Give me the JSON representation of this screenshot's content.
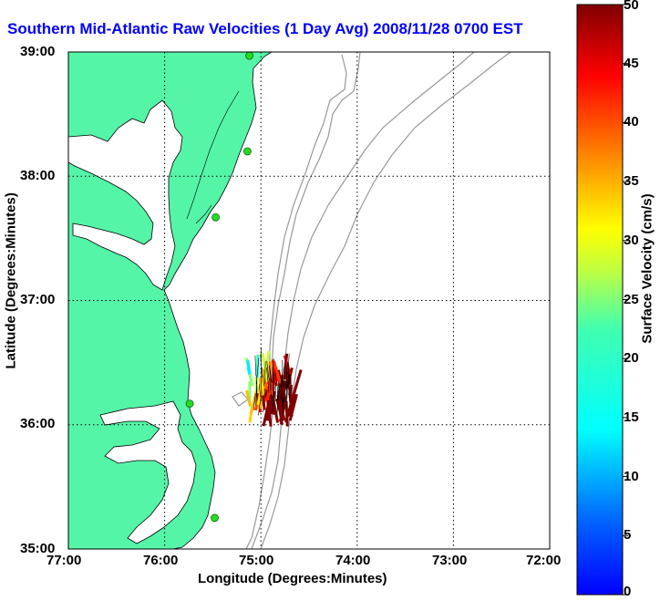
{
  "title": "Southern Mid-Atlantic Raw Velocities (1 Day Avg) 2008/11/28 0700 EST",
  "x_axis": {
    "label": "Longitude (Degrees:Minutes)",
    "ticks": [
      "77:00",
      "76:00",
      "75:00",
      "74:00",
      "73:00",
      "72:00"
    ]
  },
  "y_axis": {
    "label": "Latitude (Degrees:Minutes)",
    "ticks": [
      "39:00",
      "38:00",
      "37:00",
      "36:00",
      "35:00"
    ]
  },
  "colorbar": {
    "label": "Surface Velocity (cm/s)",
    "ticks": [
      "50",
      "45",
      "40",
      "35",
      "30",
      "25",
      "20",
      "15",
      "10",
      "5",
      "0"
    ],
    "min": 0,
    "max": 50
  },
  "colors": {
    "land": "#55f5a8",
    "title": "#0000ff",
    "station": "#22dd22",
    "bathymetry": "#999999"
  },
  "map_extent": {
    "lon_west": -77,
    "lon_east": -72,
    "lat_south": 35,
    "lat_north": 39
  },
  "grid": true,
  "stations": [
    {
      "lon": -75.12,
      "lat": 38.97
    },
    {
      "lon": -75.14,
      "lat": 38.2
    },
    {
      "lon": -75.47,
      "lat": 37.67
    },
    {
      "lon": -75.74,
      "lat": 36.17
    },
    {
      "lon": -75.48,
      "lat": 35.25
    }
  ]
}
